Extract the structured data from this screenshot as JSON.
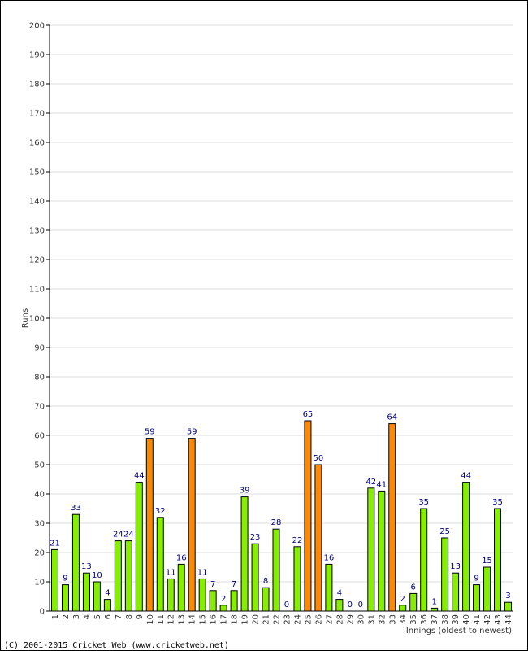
{
  "footer": "(C) 2001-2015 Cricket Web (www.cricketweb.net)",
  "chart_data": {
    "type": "bar",
    "xlabel": "Innings (oldest to newest)",
    "ylabel": "Runs",
    "ylim": [
      0,
      200
    ],
    "ytick_step": 10,
    "grid": true,
    "categories": [
      "1",
      "2",
      "3",
      "4",
      "5",
      "6",
      "7",
      "8",
      "9",
      "10",
      "11",
      "12",
      "13",
      "14",
      "15",
      "16",
      "17",
      "18",
      "19",
      "20",
      "21",
      "22",
      "23",
      "24",
      "25",
      "26",
      "27",
      "28",
      "29",
      "30",
      "31",
      "32",
      "33",
      "34",
      "35",
      "36",
      "37",
      "38",
      "39",
      "40",
      "41",
      "42",
      "43",
      "44"
    ],
    "values": [
      21,
      9,
      33,
      13,
      10,
      4,
      24,
      24,
      44,
      59,
      32,
      11,
      16,
      59,
      11,
      7,
      2,
      7,
      39,
      23,
      8,
      28,
      0,
      22,
      65,
      50,
      16,
      4,
      0,
      0,
      42,
      41,
      64,
      2,
      6,
      35,
      1,
      25,
      13,
      44,
      9,
      15,
      35,
      3
    ],
    "colors": {
      "below_50": "#88ee00",
      "fifty_plus": "#ff8800",
      "bar_outline": "#000000",
      "data_label": "#000080",
      "grid": "#dddddd"
    }
  }
}
